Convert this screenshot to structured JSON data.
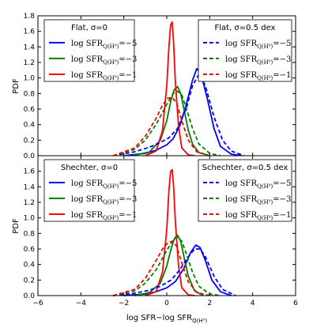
{
  "chart_data": {
    "type": "line",
    "xlabel": "log SFR−log SFR",
    "xlabel_sub": "Q(H⁰)",
    "xlim": [
      -6,
      6
    ],
    "x_ticks": [
      "−6",
      "−4",
      "−2",
      "0",
      "2",
      "4",
      "6"
    ],
    "panels": [
      {
        "ylabel": "PDF",
        "ylim": [
          0,
          1.8
        ],
        "y_ticks": [
          "0.0",
          "0.2",
          "0.4",
          "0.6",
          "0.8",
          "1.0",
          "1.2",
          "1.4",
          "1.6",
          "1.8"
        ],
        "legend_left": {
          "title": "Flat, σ=0",
          "placement": "upper-left",
          "entries": [
            "log SFR",
            "log SFR",
            "log SFR"
          ],
          "entry_subs": [
            "Q(H⁰)",
            "Q(H⁰)",
            "Q(H⁰)"
          ],
          "entry_values": [
            "=−5",
            "=−3",
            "=−1"
          ]
        },
        "legend_right": {
          "title": "Flat, σ=0.5 dex",
          "placement": "upper-right",
          "entries": [
            "log SFR",
            "log SFR",
            "log SFR"
          ],
          "entry_subs": [
            "Q(H⁰)",
            "Q(H⁰)",
            "Q(H⁰)"
          ],
          "entry_values": [
            "=−5",
            "=−3",
            "=−1"
          ]
        },
        "series": [
          {
            "color": "#0000ff",
            "dash": "solid",
            "x": [
              -2.0,
              -1.0,
              -0.5,
              0.0,
              0.3,
              0.6,
              0.9,
              1.2,
              1.4,
              1.6,
              1.9,
              2.2,
              2.5,
              3.0,
              3.5
            ],
            "y": [
              0.0,
              0.03,
              0.07,
              0.14,
              0.22,
              0.38,
              0.65,
              0.97,
              1.12,
              1.05,
              0.72,
              0.35,
              0.12,
              0.02,
              0.0
            ]
          },
          {
            "color": "#008000",
            "dash": "solid",
            "x": [
              -1.6,
              -0.8,
              -0.3,
              0.0,
              0.2,
              0.35,
              0.5,
              0.65,
              0.8,
              1.0,
              1.2,
              1.5,
              2.0
            ],
            "y": [
              0.0,
              0.05,
              0.2,
              0.45,
              0.72,
              0.85,
              0.89,
              0.8,
              0.6,
              0.33,
              0.15,
              0.04,
              0.0
            ]
          },
          {
            "color": "#ff0000",
            "dash": "solid",
            "x": [
              -1.0,
              -0.5,
              -0.2,
              0.0,
              0.1,
              0.18,
              0.25,
              0.32,
              0.4,
              0.55,
              0.7,
              1.0,
              1.3
            ],
            "y": [
              0.0,
              0.06,
              0.32,
              0.9,
              1.4,
              1.68,
              1.72,
              1.45,
              0.95,
              0.38,
              0.1,
              0.01,
              0.0
            ]
          },
          {
            "color": "#0000ff",
            "dash": "dashed",
            "x": [
              -2.5,
              -1.5,
              -0.8,
              -0.3,
              0.1,
              0.5,
              0.9,
              1.2,
              1.5,
              1.8,
              2.2,
              2.6,
              3.0,
              3.6
            ],
            "y": [
              0.0,
              0.05,
              0.11,
              0.17,
              0.23,
              0.35,
              0.6,
              0.9,
              1.05,
              0.9,
              0.5,
              0.2,
              0.06,
              0.0
            ]
          },
          {
            "color": "#008000",
            "dash": "dashed",
            "x": [
              -2.5,
              -1.5,
              -1.0,
              -0.5,
              0.0,
              0.3,
              0.5,
              0.7,
              0.9,
              1.2,
              1.5,
              2.0,
              2.5
            ],
            "y": [
              0.0,
              0.08,
              0.2,
              0.4,
              0.66,
              0.8,
              0.83,
              0.78,
              0.62,
              0.35,
              0.15,
              0.03,
              0.0
            ]
          },
          {
            "color": "#ff0000",
            "dash": "dashed",
            "x": [
              -2.5,
              -1.5,
              -1.0,
              -0.5,
              -0.2,
              0.05,
              0.25,
              0.45,
              0.7,
              1.0,
              1.4,
              2.0
            ],
            "y": [
              0.0,
              0.1,
              0.25,
              0.48,
              0.65,
              0.74,
              0.75,
              0.68,
              0.45,
              0.2,
              0.05,
              0.0
            ]
          }
        ]
      },
      {
        "ylabel": "PDF",
        "ylim": [
          0,
          1.8
        ],
        "y_ticks": [
          "0.0",
          "0.2",
          "0.4",
          "0.6",
          "0.8",
          "1.0",
          "1.2",
          "1.4",
          "1.6"
        ],
        "legend_left": {
          "title": "Shechter, σ=0",
          "placement": "upper-left",
          "entries": [
            "log SFR",
            "log SFR",
            "log SFR"
          ],
          "entry_subs": [
            "Q(H⁰)",
            "Q(H⁰)",
            "Q(H⁰)"
          ],
          "entry_values": [
            "=−5",
            "=−3",
            "=−1"
          ]
        },
        "legend_right": {
          "title": "Schechter, σ=0.5 dex",
          "placement": "upper-right",
          "entries": [
            "log SFR",
            "log SFR",
            "log SFR"
          ],
          "entry_subs": [
            "Q(H⁰)",
            "Q(H⁰)",
            "Q(H⁰)"
          ],
          "entry_values": [
            "=−5",
            "=−3",
            "=−1"
          ]
        },
        "series": [
          {
            "color": "#0000ff",
            "dash": "solid",
            "x": [
              -2.0,
              -1.0,
              -0.5,
              0.0,
              0.4,
              0.8,
              1.1,
              1.35,
              1.55,
              1.8,
              2.1,
              2.5,
              3.0
            ],
            "y": [
              0.0,
              0.02,
              0.05,
              0.1,
              0.18,
              0.35,
              0.55,
              0.65,
              0.62,
              0.45,
              0.2,
              0.05,
              0.0
            ]
          },
          {
            "color": "#008000",
            "dash": "solid",
            "x": [
              -1.5,
              -0.8,
              -0.3,
              0.0,
              0.2,
              0.35,
              0.5,
              0.65,
              0.8,
              1.0,
              1.3,
              1.7
            ],
            "y": [
              0.0,
              0.04,
              0.16,
              0.38,
              0.6,
              0.73,
              0.78,
              0.7,
              0.5,
              0.25,
              0.06,
              0.0
            ]
          },
          {
            "color": "#ff0000",
            "dash": "solid",
            "x": [
              -1.0,
              -0.5,
              -0.2,
              0.0,
              0.1,
              0.18,
              0.25,
              0.32,
              0.4,
              0.55,
              0.7,
              1.0,
              1.3
            ],
            "y": [
              0.0,
              0.05,
              0.3,
              0.85,
              1.35,
              1.6,
              1.62,
              1.4,
              0.95,
              0.38,
              0.1,
              0.01,
              0.0
            ]
          },
          {
            "color": "#0000ff",
            "dash": "dashed",
            "x": [
              -2.5,
              -1.5,
              -0.8,
              -0.3,
              0.2,
              0.6,
              1.0,
              1.3,
              1.55,
              1.8,
              2.2,
              2.6,
              3.2
            ],
            "y": [
              0.0,
              0.03,
              0.07,
              0.12,
              0.2,
              0.33,
              0.5,
              0.6,
              0.6,
              0.5,
              0.25,
              0.08,
              0.0
            ]
          },
          {
            "color": "#008000",
            "dash": "dashed",
            "x": [
              -2.5,
              -1.5,
              -1.0,
              -0.5,
              0.0,
              0.3,
              0.5,
              0.7,
              0.9,
              1.2,
              1.5,
              2.0,
              2.5
            ],
            "y": [
              0.0,
              0.06,
              0.16,
              0.33,
              0.58,
              0.72,
              0.75,
              0.7,
              0.55,
              0.3,
              0.12,
              0.02,
              0.0
            ]
          },
          {
            "color": "#ff0000",
            "dash": "dashed",
            "x": [
              -2.5,
              -1.5,
              -1.0,
              -0.5,
              -0.2,
              0.05,
              0.25,
              0.45,
              0.7,
              1.0,
              1.4,
              2.0
            ],
            "y": [
              0.0,
              0.08,
              0.22,
              0.45,
              0.6,
              0.68,
              0.7,
              0.64,
              0.42,
              0.18,
              0.04,
              0.0
            ]
          }
        ]
      }
    ]
  }
}
